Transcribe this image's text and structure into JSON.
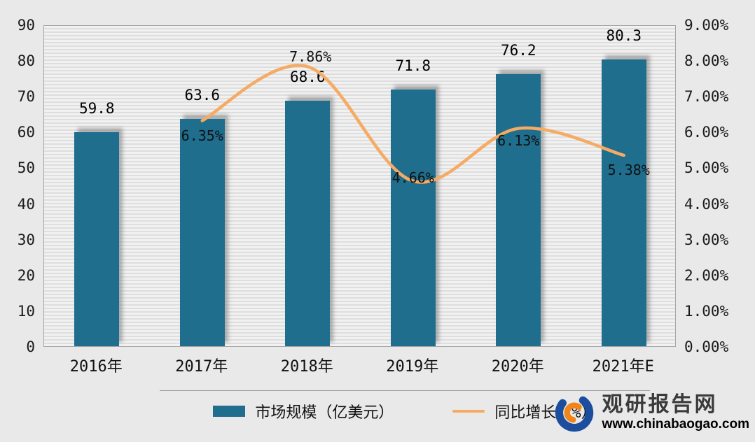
{
  "chart_data": {
    "type": "bar",
    "combo": "bar+line",
    "categories": [
      "2016年",
      "2017年",
      "2018年",
      "2019年",
      "2020年",
      "2021年E"
    ],
    "series": [
      {
        "name": "市场规模（亿美元）",
        "type": "bar",
        "axis": "left",
        "color": "#1f6e8e",
        "values": [
          59.8,
          63.6,
          68.6,
          71.8,
          76.2,
          80.3
        ],
        "labels": [
          "59.8",
          "63.6",
          "68.6",
          "71.8",
          "76.2",
          "80.3"
        ]
      },
      {
        "name": "同比增长（%）",
        "type": "line",
        "axis": "right",
        "color": "#f5ab64",
        "values": [
          null,
          6.35,
          7.86,
          4.66,
          6.13,
          5.38
        ],
        "labels": [
          "",
          "6.35%",
          "7.86%",
          "4.66%",
          "6.13%",
          "5.38%"
        ]
      }
    ],
    "left_axis": {
      "min": 0,
      "max": 90,
      "step": 10,
      "ticks": [
        "0",
        "10",
        "20",
        "30",
        "40",
        "50",
        "60",
        "70",
        "80",
        "90"
      ]
    },
    "right_axis": {
      "min": 0,
      "max": 9,
      "step": 1,
      "ticks": [
        "0.00%",
        "1.00%",
        "2.00%",
        "3.00%",
        "4.00%",
        "5.00%",
        "6.00%",
        "7.00%",
        "8.00%",
        "9.00%"
      ]
    },
    "title": "",
    "grid": "horizontal-stripes",
    "legend_position": "bottom"
  },
  "legend": {
    "bar_label": "市场规模（亿美元）",
    "line_label": "同比增长（%）"
  },
  "branding": {
    "site_name": "观研报告网",
    "site_url": "www.chinabaogao.com",
    "logo_icon": "swirl-globe-icon",
    "logo_blue": "#1d4e9e",
    "logo_orange": "#f08519"
  }
}
